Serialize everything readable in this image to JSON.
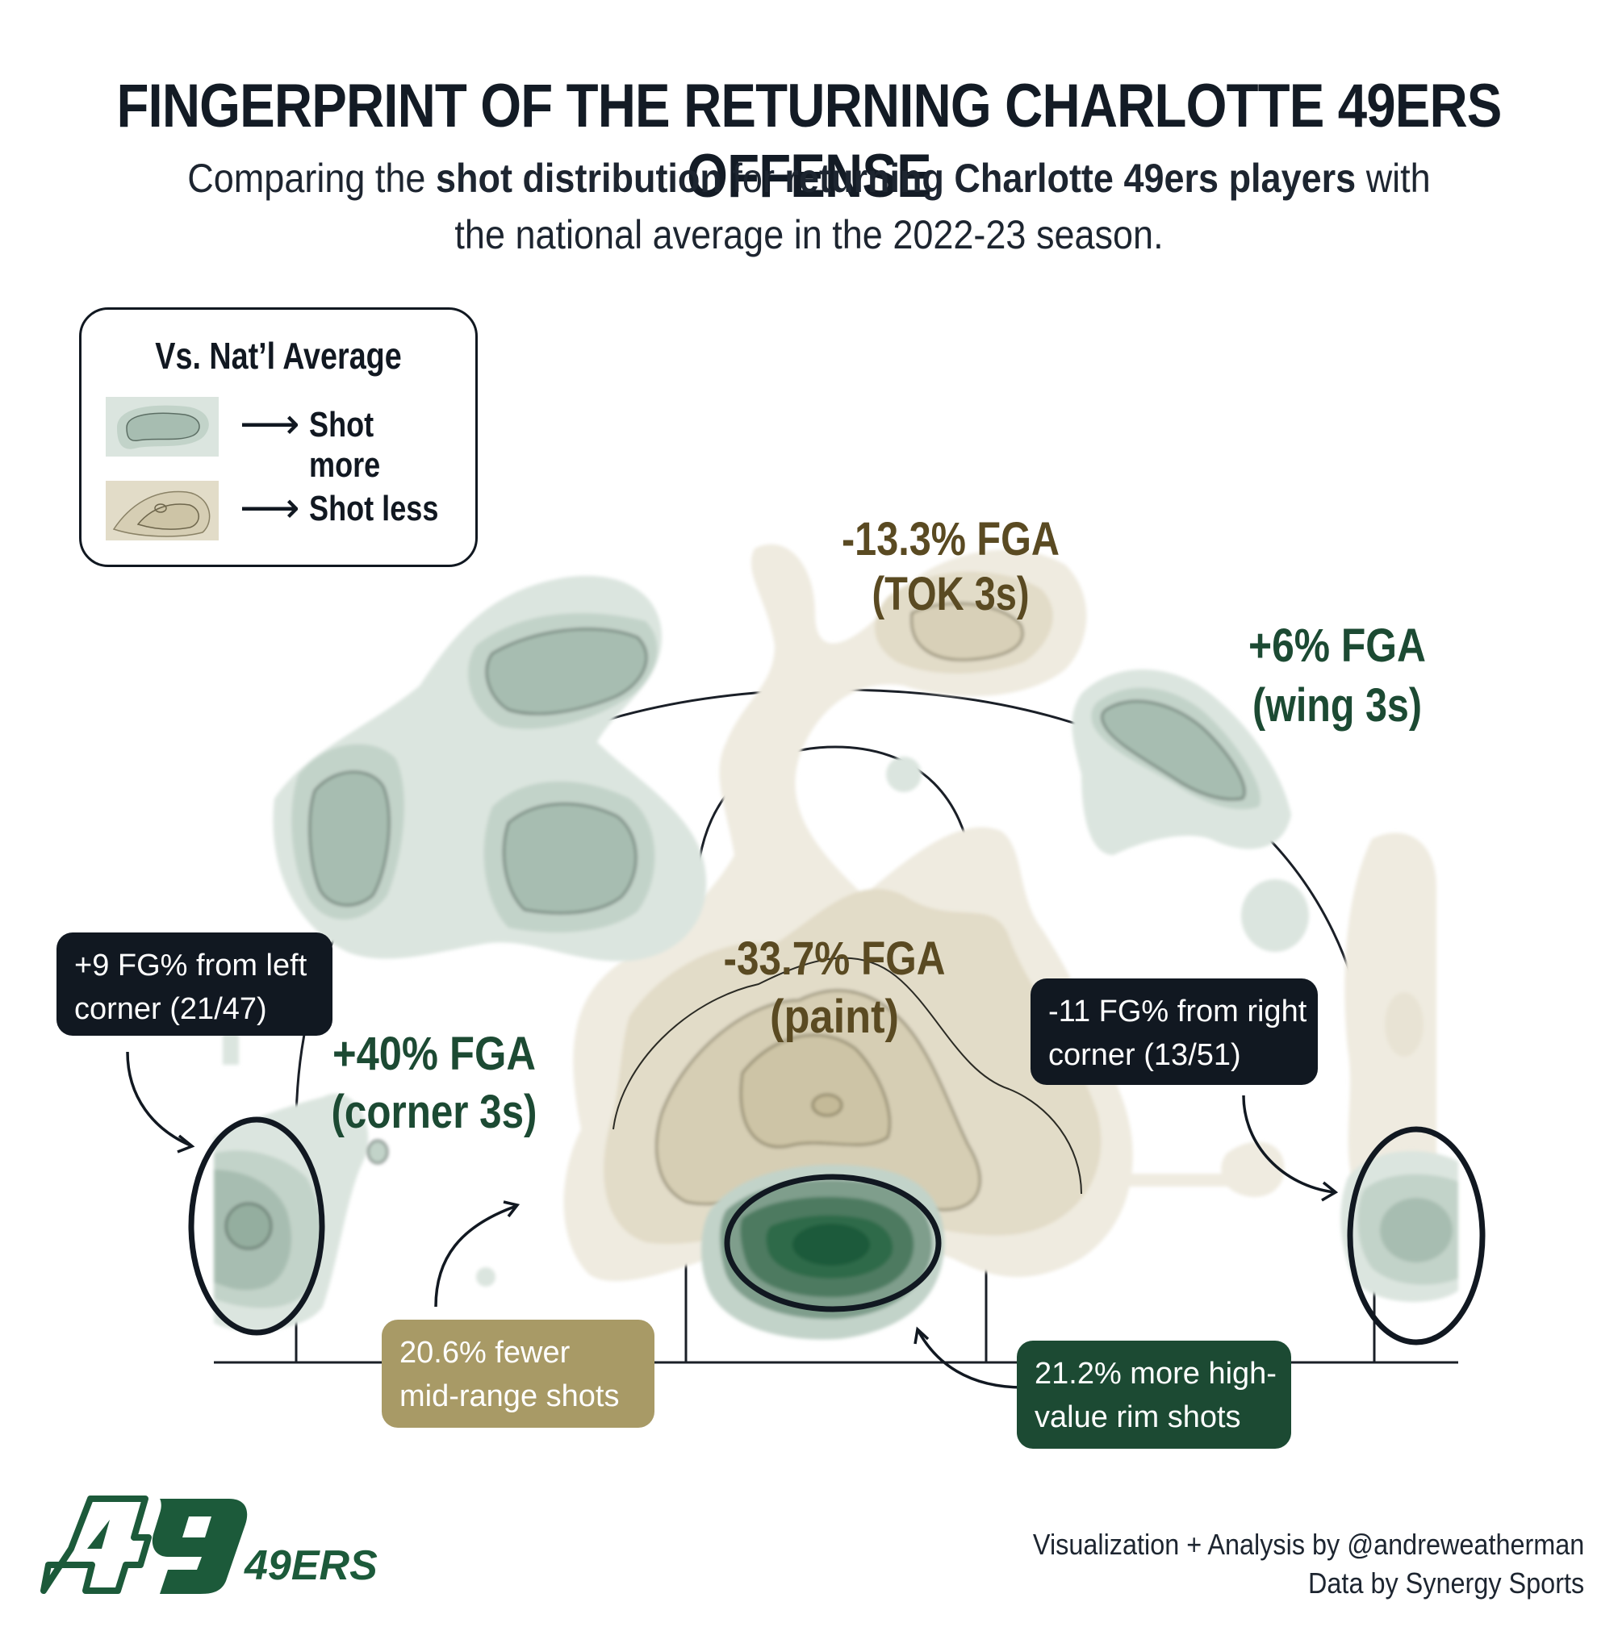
{
  "title": "FINGERPRINT OF THE RETURNING CHARLOTTE 49ERS OFFENSE",
  "subtitle": {
    "part1": "Comparing the ",
    "bold1": "shot distribution",
    "part2": " for ",
    "bold2": "returning Charlotte 49ers players",
    "part3": " with",
    "line2": "the national average in the 2022-23 season."
  },
  "legend": {
    "title": "Vs. Nat’l Average",
    "items": [
      {
        "label": "Shot more",
        "color": "#a7bdb1"
      },
      {
        "label": "Shot less",
        "color": "#cdc4a6"
      }
    ]
  },
  "chart_data": {
    "type": "heatmap",
    "description_scope": "shot distribution difference vs national average by court zone",
    "zones": [
      {
        "zone": "TOK 3s",
        "fga_diff": "-13.3% FGA",
        "direction": "less"
      },
      {
        "zone": "wing 3s",
        "fga_diff": "+6% FGA",
        "direction": "more"
      },
      {
        "zone": "paint",
        "fga_diff": "-33.7% FGA",
        "direction": "less"
      },
      {
        "zone": "corner 3s",
        "fga_diff": "+40% FGA",
        "direction": "more"
      }
    ],
    "zone_labels": [
      {
        "line1": "-13.3% FGA",
        "line2": "(TOK 3s)",
        "color": "#5a4a22"
      },
      {
        "line1": "+6% FGA",
        "line2": "(wing 3s)",
        "color": "#1c4a33"
      },
      {
        "line1": "-33.7% FGA",
        "line2": "(paint)",
        "color": "#5a4a22"
      },
      {
        "line1": "+40% FGA",
        "line2": "(corner 3s)",
        "color": "#1c4a33"
      }
    ],
    "callouts": [
      {
        "line1": "+9 FG% from left",
        "line2": "corner (21/47)",
        "color": "#111821"
      },
      {
        "line1": "-11 FG% from right",
        "line2": "corner (13/51)",
        "color": "#111821"
      },
      {
        "line1": "20.6% fewer",
        "line2": "mid-range shots",
        "color": "#a89a66"
      },
      {
        "line1": "21.2% more high-",
        "line2": "value rim shots",
        "color": "#1c4a33"
      }
    ],
    "colors": {
      "more_light": "#dbe5df",
      "more_mid": "#c2d3c9",
      "more_dark": "#a7bdb1",
      "rim_dark": "#1a5a3a",
      "less_light": "#efebe0",
      "less_mid": "#e2dcc8",
      "less_dark": "#cdc4a6"
    }
  },
  "credits": {
    "line1": "Visualization + Analysis by @andreweatherman",
    "line2": "Data by Synergy Sports"
  },
  "logo": {
    "text": "49ERS",
    "color": "#1c5a3a"
  }
}
